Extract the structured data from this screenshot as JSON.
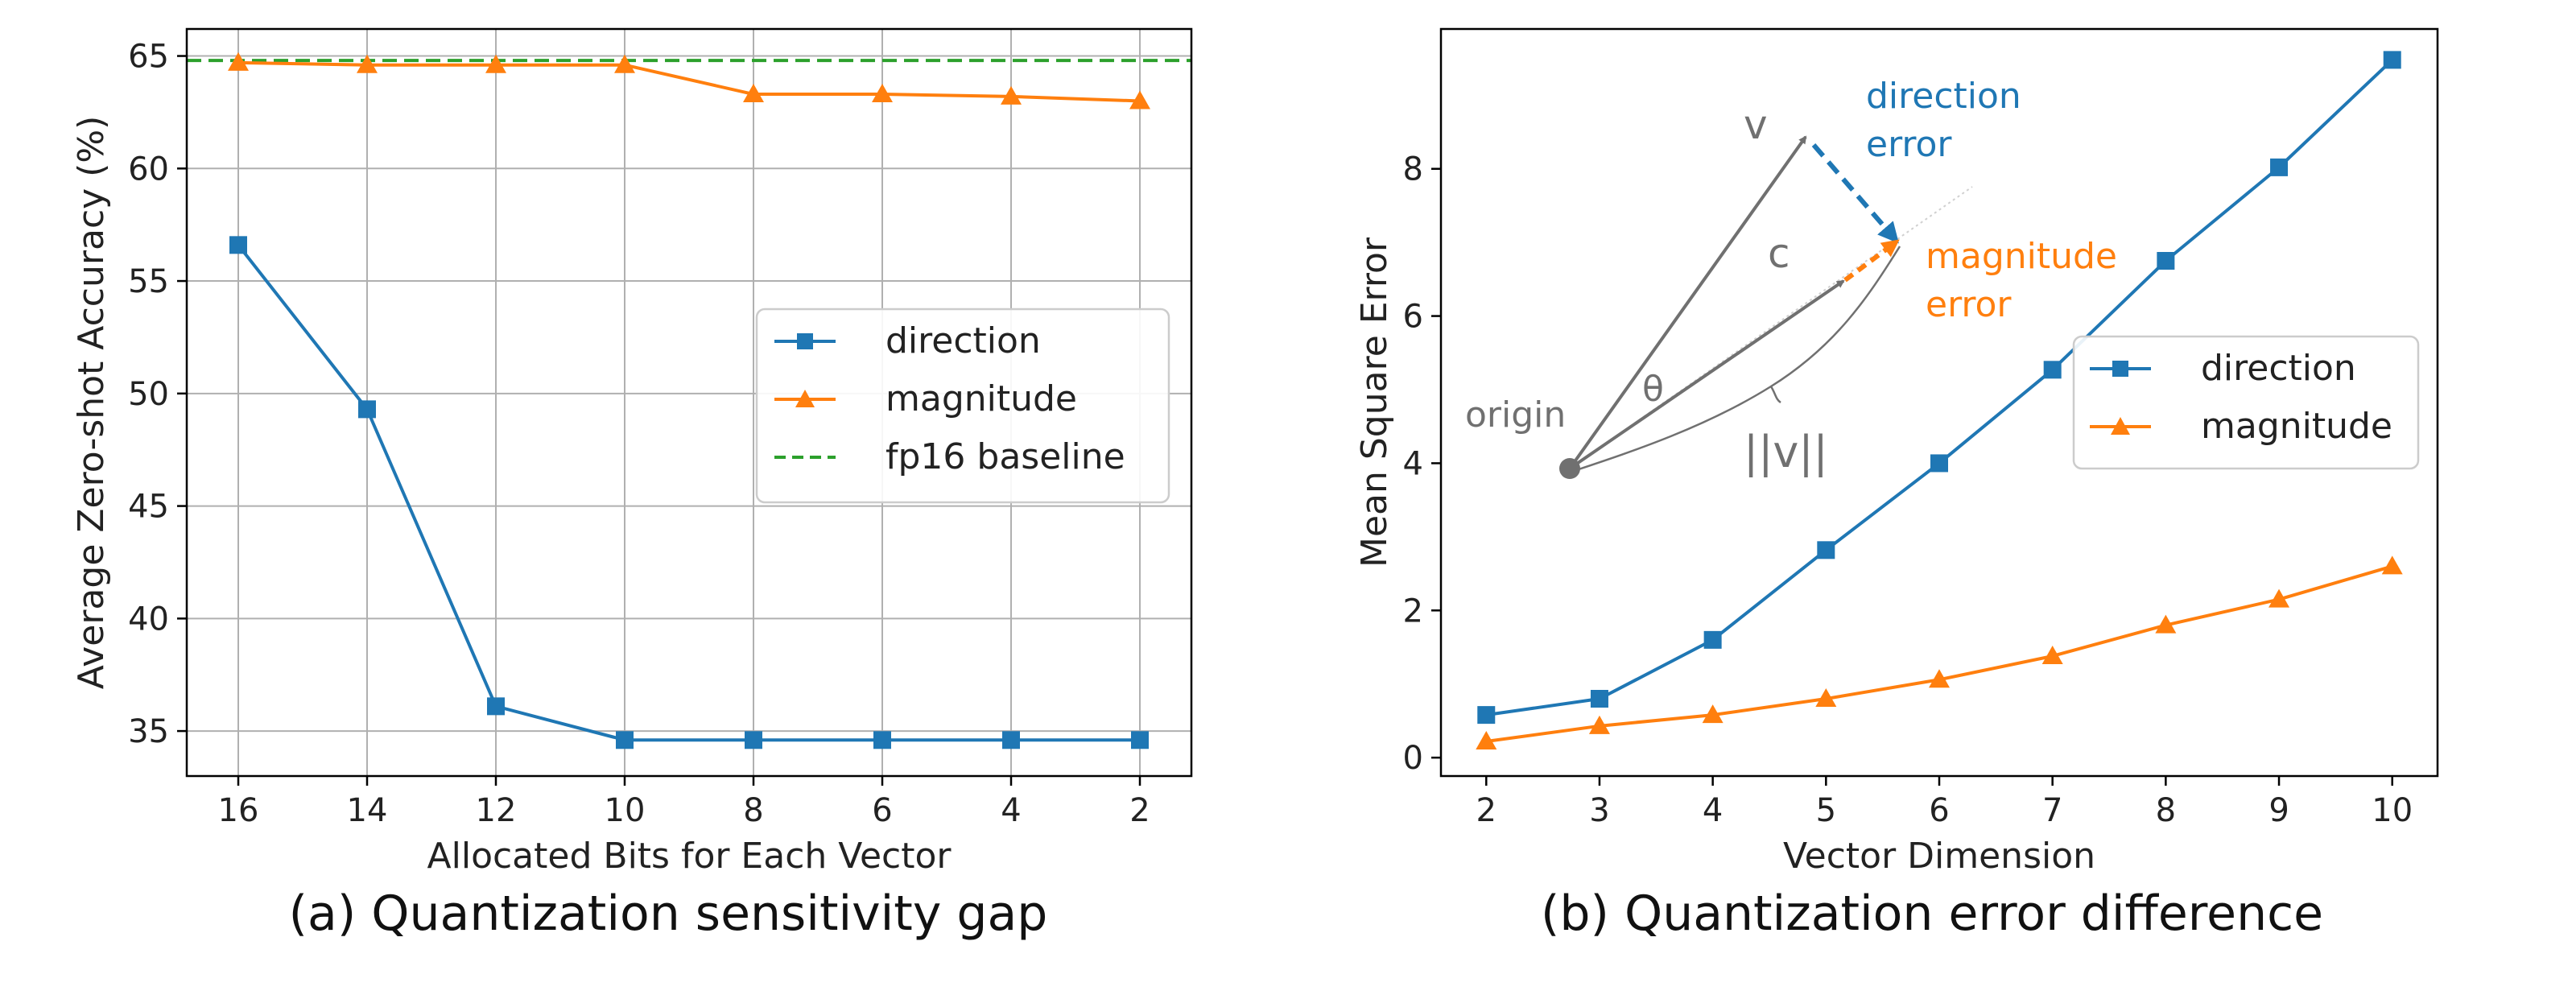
{
  "chart_data": [
    {
      "type": "line",
      "title": "",
      "xlabel": "Allocated Bits for Each Vector",
      "ylabel": "Average Zero-shot Accuracy (%)",
      "x": [
        16,
        14,
        12,
        10,
        8,
        6,
        4,
        2
      ],
      "xlim": [
        16.8,
        1.2
      ],
      "ylim": [
        33,
        66.2
      ],
      "xticks": [
        "16",
        "14",
        "12",
        "10",
        "8",
        "6",
        "4",
        "2"
      ],
      "yticks": [
        "35",
        "40",
        "45",
        "50",
        "55",
        "60",
        "65"
      ],
      "grid": true,
      "series": [
        {
          "name": "direction",
          "marker": "square",
          "color": "#1f77b4",
          "values": [
            56.6,
            49.3,
            36.1,
            34.6,
            34.6,
            34.6,
            34.6,
            34.6
          ]
        },
        {
          "name": "magnitude",
          "marker": "triangle",
          "color": "#ff7f0e",
          "values": [
            64.7,
            64.6,
            64.6,
            64.6,
            63.3,
            63.3,
            63.2,
            63.0
          ]
        }
      ],
      "baseline": {
        "name": "fp16 baseline",
        "value": 64.8,
        "color": "#2ca02c",
        "style": "dashed"
      },
      "legend": {
        "position": "center-right",
        "entries": [
          "direction",
          "magnitude",
          "fp16 baseline"
        ]
      },
      "caption": "(a) Quantization sensitivity gap"
    },
    {
      "type": "line",
      "title": "",
      "xlabel": "Vector Dimension",
      "ylabel": "Mean Square Error",
      "x": [
        2,
        3,
        4,
        5,
        6,
        7,
        8,
        9,
        10
      ],
      "xlim": [
        1.6,
        10.4
      ],
      "ylim": [
        -0.25,
        9.9
      ],
      "xticks": [
        "2",
        "3",
        "4",
        "5",
        "6",
        "7",
        "8",
        "9",
        "10"
      ],
      "yticks": [
        "0",
        "2",
        "4",
        "6",
        "8"
      ],
      "grid": false,
      "series": [
        {
          "name": "direction",
          "marker": "square",
          "color": "#1f77b4",
          "values": [
            0.58,
            0.8,
            1.6,
            2.82,
            4.0,
            5.27,
            6.75,
            8.02,
            9.48
          ]
        },
        {
          "name": "magnitude",
          "marker": "triangle",
          "color": "#ff7f0e",
          "values": [
            0.22,
            0.43,
            0.58,
            0.8,
            1.06,
            1.38,
            1.8,
            2.15,
            2.6
          ]
        }
      ],
      "legend": {
        "position": "center-right",
        "entries": [
          "direction",
          "magnitude"
        ]
      },
      "inset_diagram": {
        "labels": {
          "v": "v",
          "c": "c",
          "theta": "θ",
          "origin": "origin",
          "norm": "||v||",
          "direction_error": [
            "direction",
            "error"
          ],
          "magnitude_error": [
            "magnitude",
            "error"
          ]
        },
        "colors": {
          "arrow": "#707070",
          "direction_error": "#1f77b4",
          "magnitude_error": "#ff7f0e",
          "text": "#707070"
        }
      },
      "caption": "(b) Quantization error difference"
    }
  ]
}
